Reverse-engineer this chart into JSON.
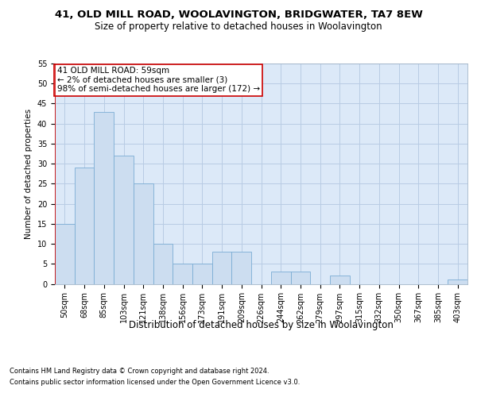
{
  "title1": "41, OLD MILL ROAD, WOOLAVINGTON, BRIDGWATER, TA7 8EW",
  "title2": "Size of property relative to detached houses in Woolavington",
  "xlabel": "Distribution of detached houses by size in Woolavington",
  "ylabel": "Number of detached properties",
  "categories": [
    "50sqm",
    "68sqm",
    "85sqm",
    "103sqm",
    "121sqm",
    "138sqm",
    "156sqm",
    "173sqm",
    "191sqm",
    "209sqm",
    "226sqm",
    "244sqm",
    "262sqm",
    "279sqm",
    "297sqm",
    "315sqm",
    "332sqm",
    "350sqm",
    "367sqm",
    "385sqm",
    "403sqm"
  ],
  "values": [
    15,
    29,
    43,
    32,
    25,
    10,
    5,
    5,
    8,
    8,
    0,
    3,
    3,
    0,
    2,
    0,
    0,
    0,
    0,
    0,
    1
  ],
  "bar_color": "#ccddf0",
  "bar_edge_color": "#7badd4",
  "highlight_line_color": "#cc0000",
  "annotation_text": "41 OLD MILL ROAD: 59sqm\n← 2% of detached houses are smaller (3)\n98% of semi-detached houses are larger (172) →",
  "annotation_box_color": "#ffffff",
  "annotation_box_edge": "#cc0000",
  "ylim": [
    0,
    55
  ],
  "yticks": [
    0,
    5,
    10,
    15,
    20,
    25,
    30,
    35,
    40,
    45,
    50,
    55
  ],
  "footnote1": "Contains HM Land Registry data © Crown copyright and database right 2024.",
  "footnote2": "Contains public sector information licensed under the Open Government Licence v3.0.",
  "bg_color": "#ffffff",
  "plot_bg_color": "#dce9f8",
  "grid_color": "#b8cce4",
  "title1_fontsize": 9.5,
  "title2_fontsize": 8.5,
  "xlabel_fontsize": 8.5,
  "ylabel_fontsize": 7.5,
  "tick_fontsize": 7,
  "annot_fontsize": 7.5,
  "footnote_fontsize": 6
}
